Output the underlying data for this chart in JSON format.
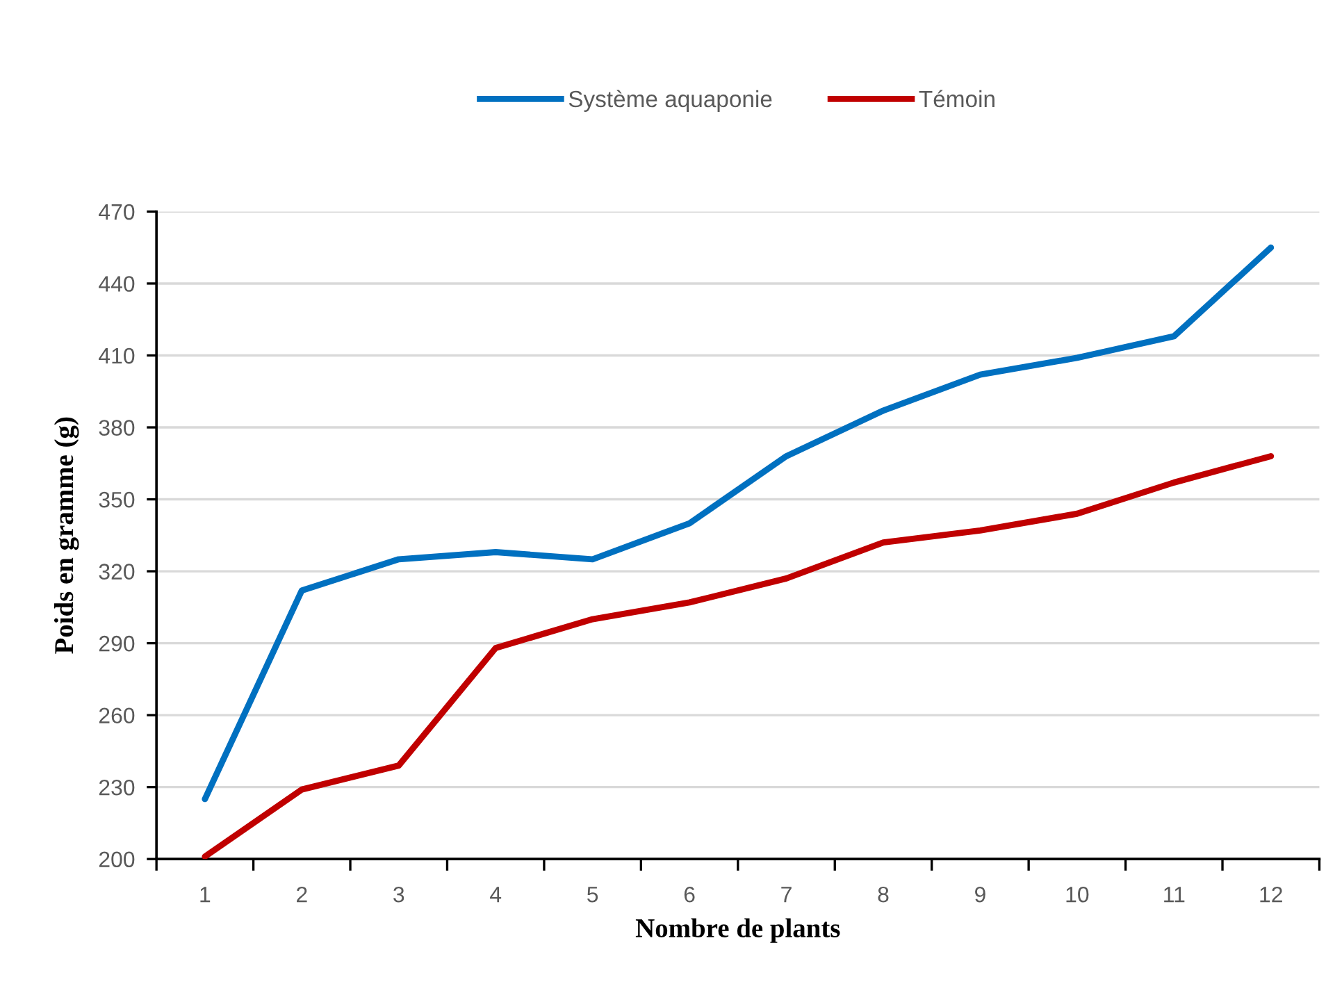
{
  "chart_data": {
    "type": "line",
    "xlabel": "Nombre de plants",
    "ylabel": "Poids en gramme (g)",
    "categories": [
      "1",
      "2",
      "3",
      "4",
      "5",
      "6",
      "7",
      "8",
      "9",
      "10",
      "11",
      "12"
    ],
    "series": [
      {
        "name": "Système aquaponie",
        "color": "#0070c0",
        "values": [
          225,
          312,
          325,
          328,
          325,
          340,
          368,
          387,
          402,
          409,
          418,
          455
        ]
      },
      {
        "name": "Témoin",
        "color": "#c00000",
        "values": [
          201,
          229,
          239,
          288,
          300,
          307,
          317,
          332,
          337,
          344,
          357,
          368
        ]
      }
    ],
    "ylim": [
      200,
      470
    ],
    "yticks": [
      200,
      230,
      260,
      290,
      320,
      350,
      380,
      410,
      440,
      470
    ],
    "grid": "y",
    "legend": "top",
    "marker": "none",
    "line_style": "solid"
  }
}
